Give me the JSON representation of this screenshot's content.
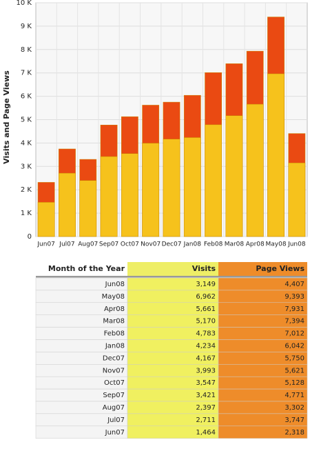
{
  "chart_data": {
    "type": "bar",
    "ylabel": "Visits and Page Views",
    "categories": [
      "Jun07",
      "Jul07",
      "Aug07",
      "Sep07",
      "Oct07",
      "Nov07",
      "Dec07",
      "Jan08",
      "Feb08",
      "Mar08",
      "Apr08",
      "May08",
      "Jun08"
    ],
    "series": [
      {
        "name": "Page Views",
        "color": "#ea4a12",
        "values": [
          2318,
          3747,
          3302,
          4771,
          5128,
          5621,
          5750,
          6042,
          7012,
          7394,
          7931,
          9393,
          4407
        ]
      },
      {
        "name": "Visits",
        "color": "#f6c21c",
        "values": [
          1464,
          2711,
          2397,
          3421,
          3547,
          3993,
          4167,
          4234,
          4783,
          5170,
          5661,
          6962,
          3149
        ]
      }
    ],
    "ylim": [
      0,
      10000
    ],
    "yticks": [
      0,
      {
        "value": 1000,
        "label": "1 K"
      },
      {
        "value": 2000,
        "label": "2 K"
      },
      {
        "value": 3000,
        "label": "3 K"
      },
      {
        "value": 4000,
        "label": "4 K"
      },
      {
        "value": 5000,
        "label": "5 K"
      },
      {
        "value": 6000,
        "label": "6 K"
      },
      {
        "value": 7000,
        "label": "7 K"
      },
      {
        "value": 8000,
        "label": "8 K"
      },
      {
        "value": 9000,
        "label": "9 K"
      },
      {
        "value": 10000,
        "label": "10 K"
      }
    ],
    "grid": true
  },
  "table": {
    "header": "Month of the Year",
    "rows": [
      [
        "Jun08",
        "3,149",
        "4,407"
      ],
      [
        "May08",
        "6,962",
        "9,393"
      ],
      [
        "Apr08",
        "5,661",
        "7,931"
      ],
      [
        "Mar08",
        "5,170",
        "7,394"
      ],
      [
        "Feb08",
        "4,783",
        "7,012"
      ],
      [
        "Jan08",
        "4,234",
        "6,042"
      ],
      [
        "Dec07",
        "4,167",
        "5,750"
      ],
      [
        "Nov07",
        "3,993",
        "5,621"
      ],
      [
        "Oct07",
        "3,547",
        "5,128"
      ],
      [
        "Sep07",
        "3,421",
        "4,771"
      ],
      [
        "Aug07",
        "2,397",
        "3,302"
      ],
      [
        "Jul07",
        "2,711",
        "3,747"
      ],
      [
        "Jun07",
        "1,464",
        "2,318"
      ]
    ]
  }
}
